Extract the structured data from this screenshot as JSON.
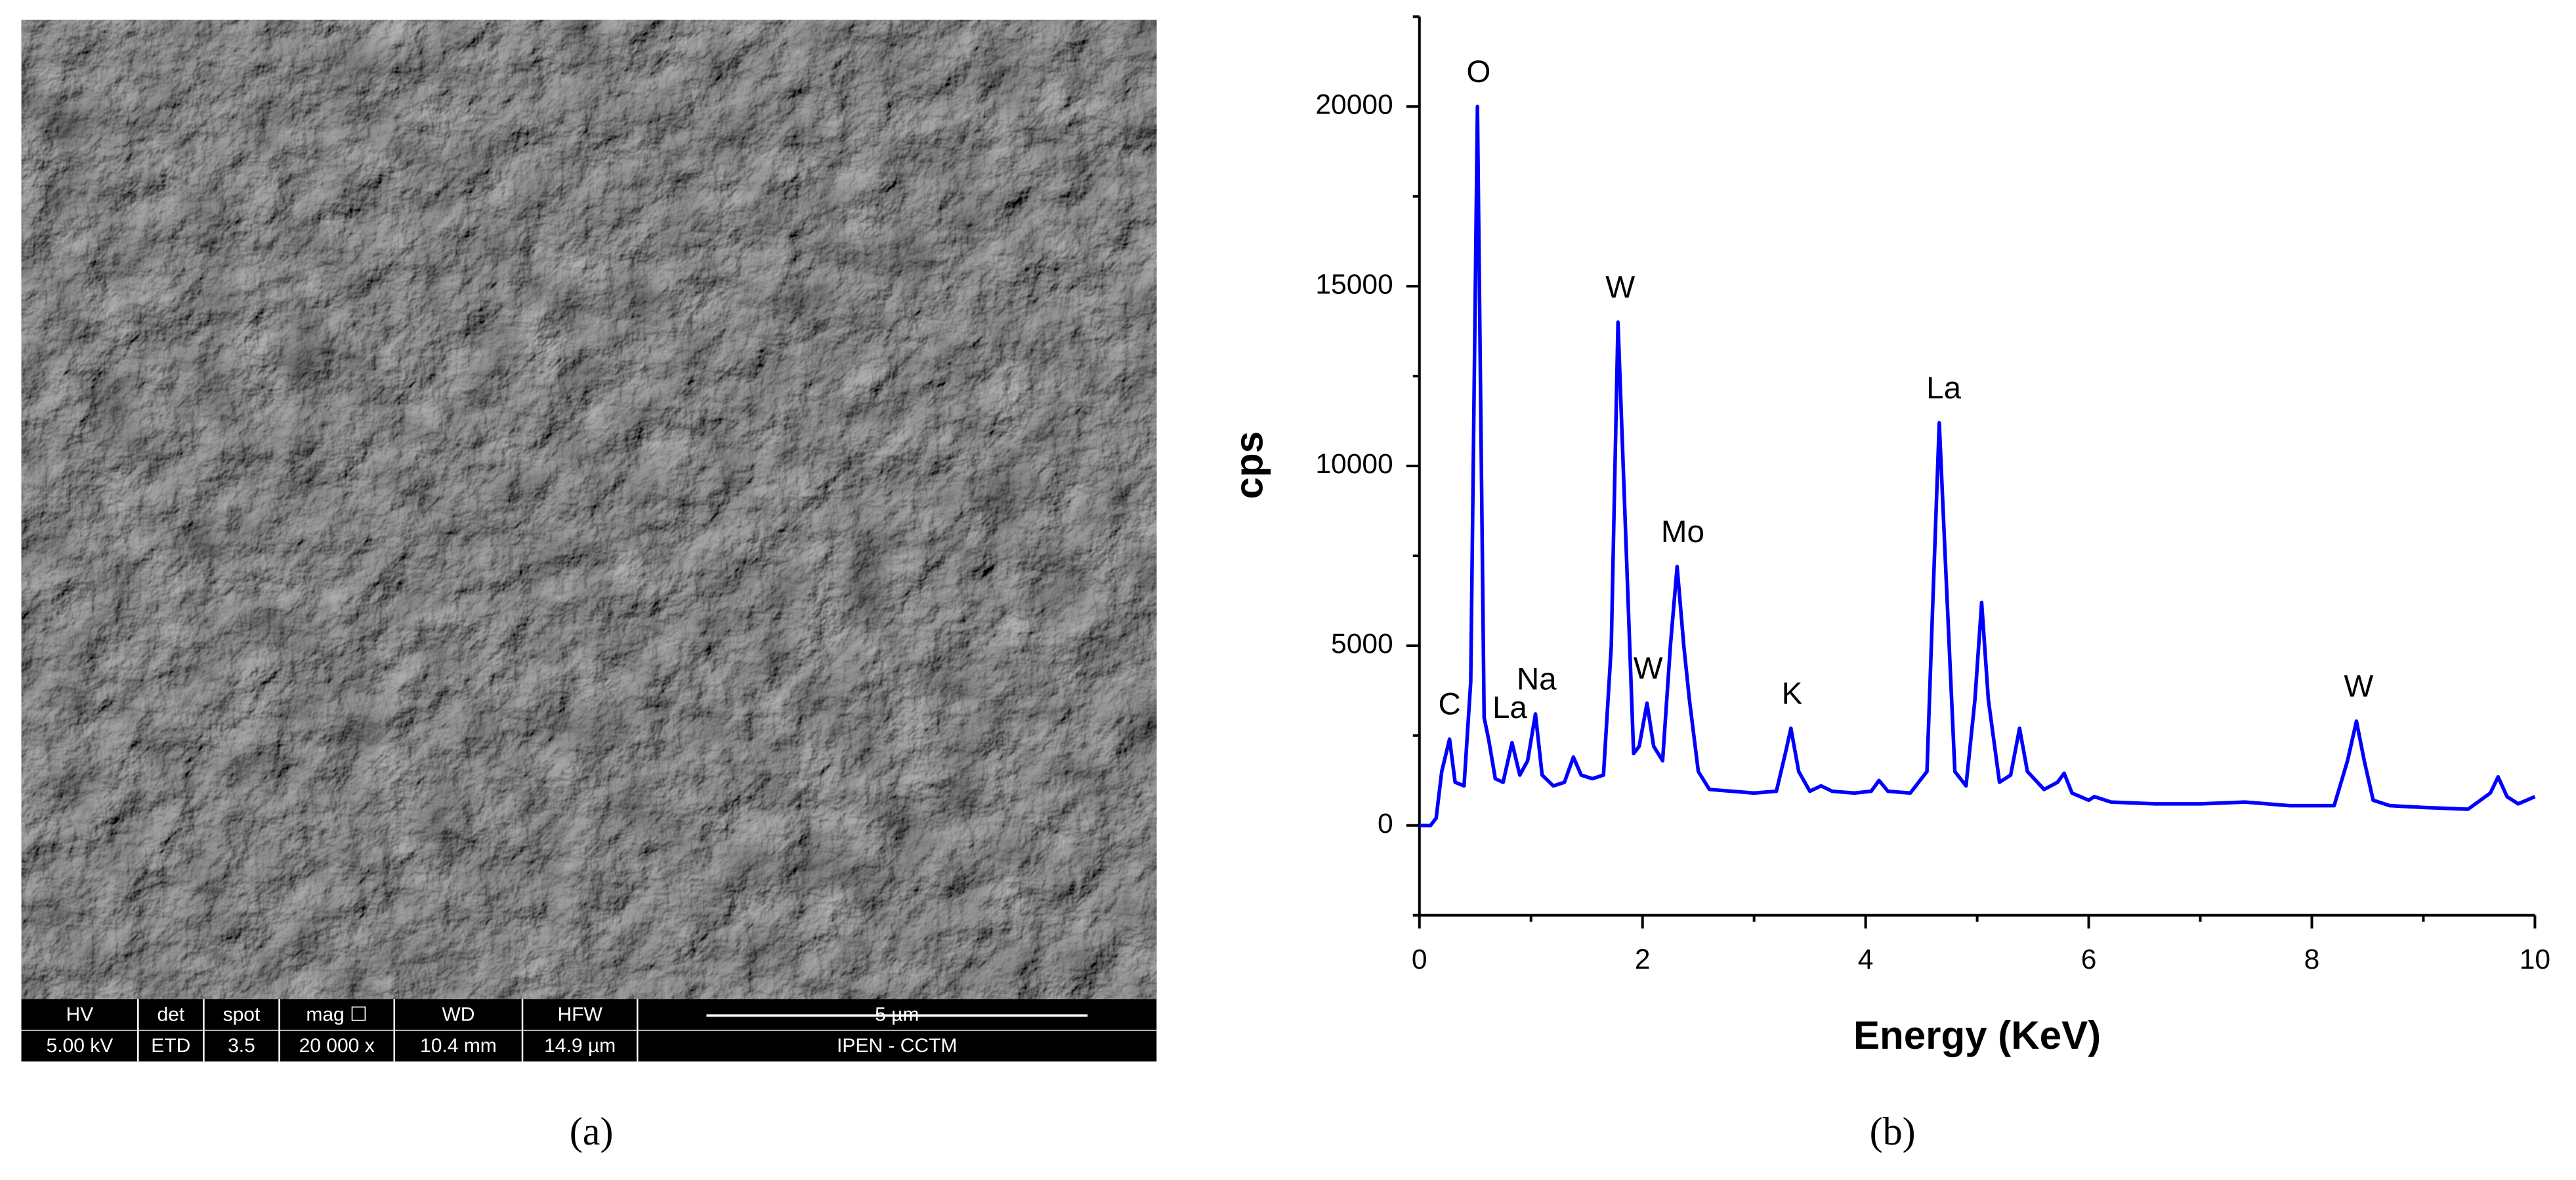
{
  "sem_panel": {
    "headers": [
      "HV",
      "det",
      "spot",
      "mag ☐",
      "WD",
      "HFW",
      "5 µm"
    ],
    "values": [
      "5.00 kV",
      "ETD",
      "3.5",
      "20 000 x",
      "10.4 mm",
      "14.9 µm",
      "IPEN - CCTM"
    ],
    "caption": "(a)"
  },
  "chart_data": {
    "type": "line",
    "caption": "(b)",
    "x_label": "Energy (KeV)",
    "y_label": "cps",
    "color": "#0000ff",
    "xlim": [
      0,
      10
    ],
    "ylim": [
      -2500,
      22500
    ],
    "xticks": [
      0,
      2,
      4,
      6,
      8,
      10
    ],
    "yticks": [
      0,
      5000,
      10000,
      15000,
      20000
    ],
    "x": [
      0,
      0.1,
      0.15,
      0.2,
      0.27,
      0.32,
      0.4,
      0.46,
      0.52,
      0.58,
      0.62,
      0.68,
      0.75,
      0.83,
      0.9,
      0.97,
      1.04,
      1.1,
      1.2,
      1.3,
      1.38,
      1.45,
      1.55,
      1.65,
      1.72,
      1.78,
      1.85,
      1.92,
      1.97,
      2.04,
      2.1,
      2.18,
      2.25,
      2.31,
      2.37,
      2.42,
      2.5,
      2.6,
      2.8,
      3.0,
      3.2,
      3.28,
      3.33,
      3.4,
      3.5,
      3.6,
      3.7,
      3.9,
      4.05,
      4.12,
      4.2,
      4.4,
      4.55,
      4.6,
      4.66,
      4.72,
      4.8,
      4.9,
      4.98,
      5.04,
      5.1,
      5.2,
      5.3,
      5.38,
      5.45,
      5.6,
      5.72,
      5.78,
      5.85,
      6.0,
      6.05,
      6.2,
      6.6,
      7.0,
      7.4,
      7.8,
      8.2,
      8.32,
      8.4,
      8.47,
      8.55,
      8.7,
      9.0,
      9.4,
      9.6,
      9.67,
      9.75,
      9.85,
      10
    ],
    "values": [
      0,
      0,
      200,
      1500,
      2400,
      1200,
      1100,
      4000,
      20000,
      3000,
      2400,
      1300,
      1200,
      2300,
      1400,
      1800,
      3100,
      1400,
      1100,
      1200,
      1900,
      1400,
      1300,
      1400,
      5000,
      14000,
      8000,
      2000,
      2200,
      3400,
      2200,
      1800,
      5000,
      7200,
      5000,
      3500,
      1500,
      1000,
      950,
      900,
      950,
      2000,
      2700,
      1500,
      950,
      1100,
      950,
      900,
      950,
      1250,
      950,
      900,
      1500,
      6000,
      11200,
      7000,
      1500,
      1100,
      3500,
      6200,
      3500,
      1200,
      1400,
      2700,
      1500,
      1000,
      1200,
      1450,
      900,
      700,
      800,
      650,
      600,
      600,
      650,
      550,
      550,
      1800,
      2900,
      1800,
      700,
      550,
      500,
      450,
      900,
      1350,
      800,
      600,
      800
    ],
    "annotations": [
      {
        "text": "C",
        "x": 0.27,
        "y": 2400
      },
      {
        "text": "O",
        "x": 0.53,
        "y": 20000
      },
      {
        "text": "La",
        "x": 0.81,
        "y": 2300
      },
      {
        "text": "Na",
        "x": 1.05,
        "y": 3100
      },
      {
        "text": "W",
        "x": 1.8,
        "y": 14000
      },
      {
        "text": "W",
        "x": 2.05,
        "y": 3400
      },
      {
        "text": "Mo",
        "x": 2.36,
        "y": 7200
      },
      {
        "text": "K",
        "x": 3.34,
        "y": 2700
      },
      {
        "text": "La",
        "x": 4.7,
        "y": 11200
      },
      {
        "text": "W",
        "x": 8.42,
        "y": 2900
      }
    ]
  }
}
